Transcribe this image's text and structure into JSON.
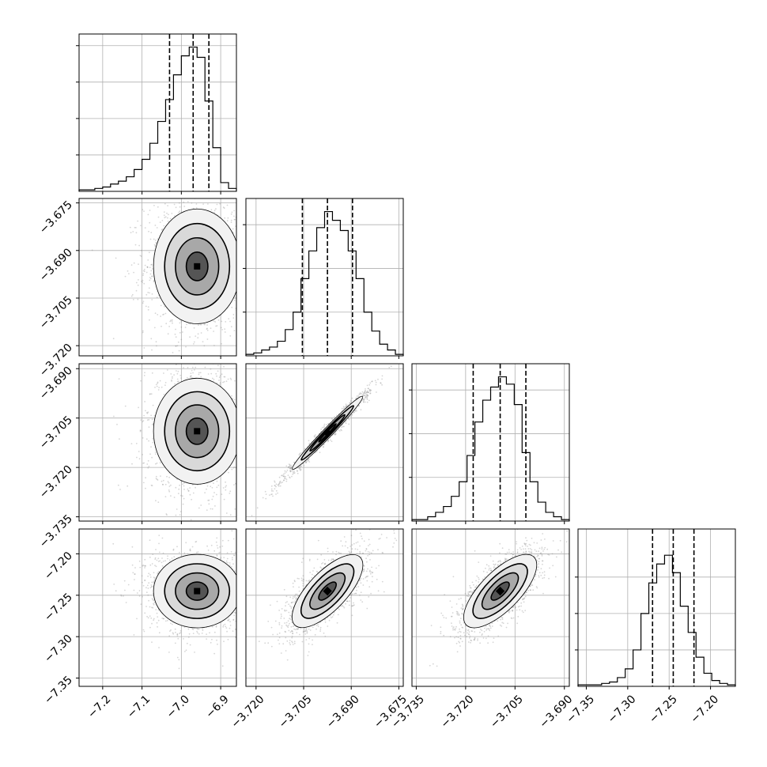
{
  "chart_data": {
    "type": "corner",
    "grid": true,
    "title": "",
    "parameters": [
      {
        "index": 0,
        "range": [
          -7.26,
          -6.86
        ],
        "ticks": [
          -7.2,
          -7.1,
          -7.0,
          -6.9
        ],
        "tick_labels": [
          "−7.2",
          "−7.1",
          "−7.0",
          "−6.9"
        ]
      },
      {
        "index": 1,
        "range": [
          -3.7232,
          -3.6736
        ],
        "ticks": [
          -3.72,
          -3.705,
          -3.69,
          -3.675
        ],
        "tick_labels": [
          "−3.720",
          "−3.705",
          "−3.690",
          "−3.675"
        ]
      },
      {
        "index": 2,
        "range": [
          -3.7363,
          -3.6885
        ],
        "ticks": [
          -3.735,
          -3.72,
          -3.705,
          -3.69
        ],
        "tick_labels": [
          "−3.735",
          "−3.720",
          "−3.705",
          "−3.690"
        ]
      },
      {
        "index": 3,
        "range": [
          -7.36,
          -7.17
        ],
        "ticks": [
          -7.35,
          -7.3,
          -7.25,
          -7.2
        ],
        "tick_labels": [
          "−7.35",
          "−7.30",
          "−7.25",
          "−7.20"
        ]
      }
    ],
    "diagonal": [
      {
        "param": 0,
        "quantiles": [
          -7.03,
          -6.97,
          -6.93
        ],
        "y_ticks": [
          0.25,
          0.5,
          0.75,
          1.0
        ],
        "hist": [
          0.01,
          0.01,
          0.02,
          0.03,
          0.05,
          0.07,
          0.1,
          0.15,
          0.22,
          0.33,
          0.48,
          0.63,
          0.8,
          0.93,
          0.99,
          0.92,
          0.62,
          0.3,
          0.06,
          0.02
        ]
      },
      {
        "param": 1,
        "quantiles": [
          -3.7054,
          -3.6975,
          -3.6896
        ],
        "y_ticks": [
          0.3,
          0.6,
          0.9
        ],
        "hist": [
          0.01,
          0.02,
          0.04,
          0.06,
          0.1,
          0.18,
          0.3,
          0.53,
          0.72,
          0.88,
          0.99,
          0.93,
          0.86,
          0.72,
          0.53,
          0.3,
          0.17,
          0.08,
          0.04,
          0.01
        ]
      },
      {
        "param": 2,
        "quantiles": [
          -3.7177,
          -3.7095,
          -3.7017
        ],
        "y_ticks": [
          0.3,
          0.6,
          0.9
        ],
        "hist": [
          0.01,
          0.01,
          0.03,
          0.06,
          0.1,
          0.17,
          0.27,
          0.45,
          0.68,
          0.83,
          0.92,
          0.99,
          0.94,
          0.8,
          0.47,
          0.27,
          0.13,
          0.06,
          0.03,
          0.01
        ]
      },
      {
        "param": 3,
        "quantiles": [
          -7.27,
          -7.245,
          -7.22
        ],
        "y_ticks": [
          0.25,
          0.5,
          0.75
        ],
        "hist": [
          0.01,
          0.01,
          0.01,
          0.02,
          0.03,
          0.06,
          0.12,
          0.25,
          0.5,
          0.71,
          0.84,
          0.9,
          0.78,
          0.55,
          0.37,
          0.2,
          0.09,
          0.04,
          0.02,
          0.01
        ]
      }
    ],
    "pairs": [
      {
        "x": 0,
        "y": 1,
        "mean": [
          -6.96,
          -3.695
        ],
        "sd": [
          0.055,
          0.009
        ],
        "rho": 0.0
      },
      {
        "x": 0,
        "y": 2,
        "mean": [
          -6.96,
          -3.709
        ],
        "sd": [
          0.055,
          0.008
        ],
        "rho": 0.0
      },
      {
        "x": 1,
        "y": 2,
        "mean": [
          -3.6975,
          -3.7095
        ],
        "sd": [
          0.0055,
          0.0055
        ],
        "rho": 0.985
      },
      {
        "x": 0,
        "y": 3,
        "mean": [
          -6.96,
          -7.245
        ],
        "sd": [
          0.055,
          0.022
        ],
        "rho": 0.0
      },
      {
        "x": 1,
        "y": 3,
        "mean": [
          -3.6975,
          -7.245
        ],
        "sd": [
          0.0055,
          0.022
        ],
        "rho": 0.72
      },
      {
        "x": 2,
        "y": 3,
        "mean": [
          -3.7095,
          -7.245
        ],
        "sd": [
          0.0055,
          0.022
        ],
        "rho": 0.72
      }
    ]
  }
}
